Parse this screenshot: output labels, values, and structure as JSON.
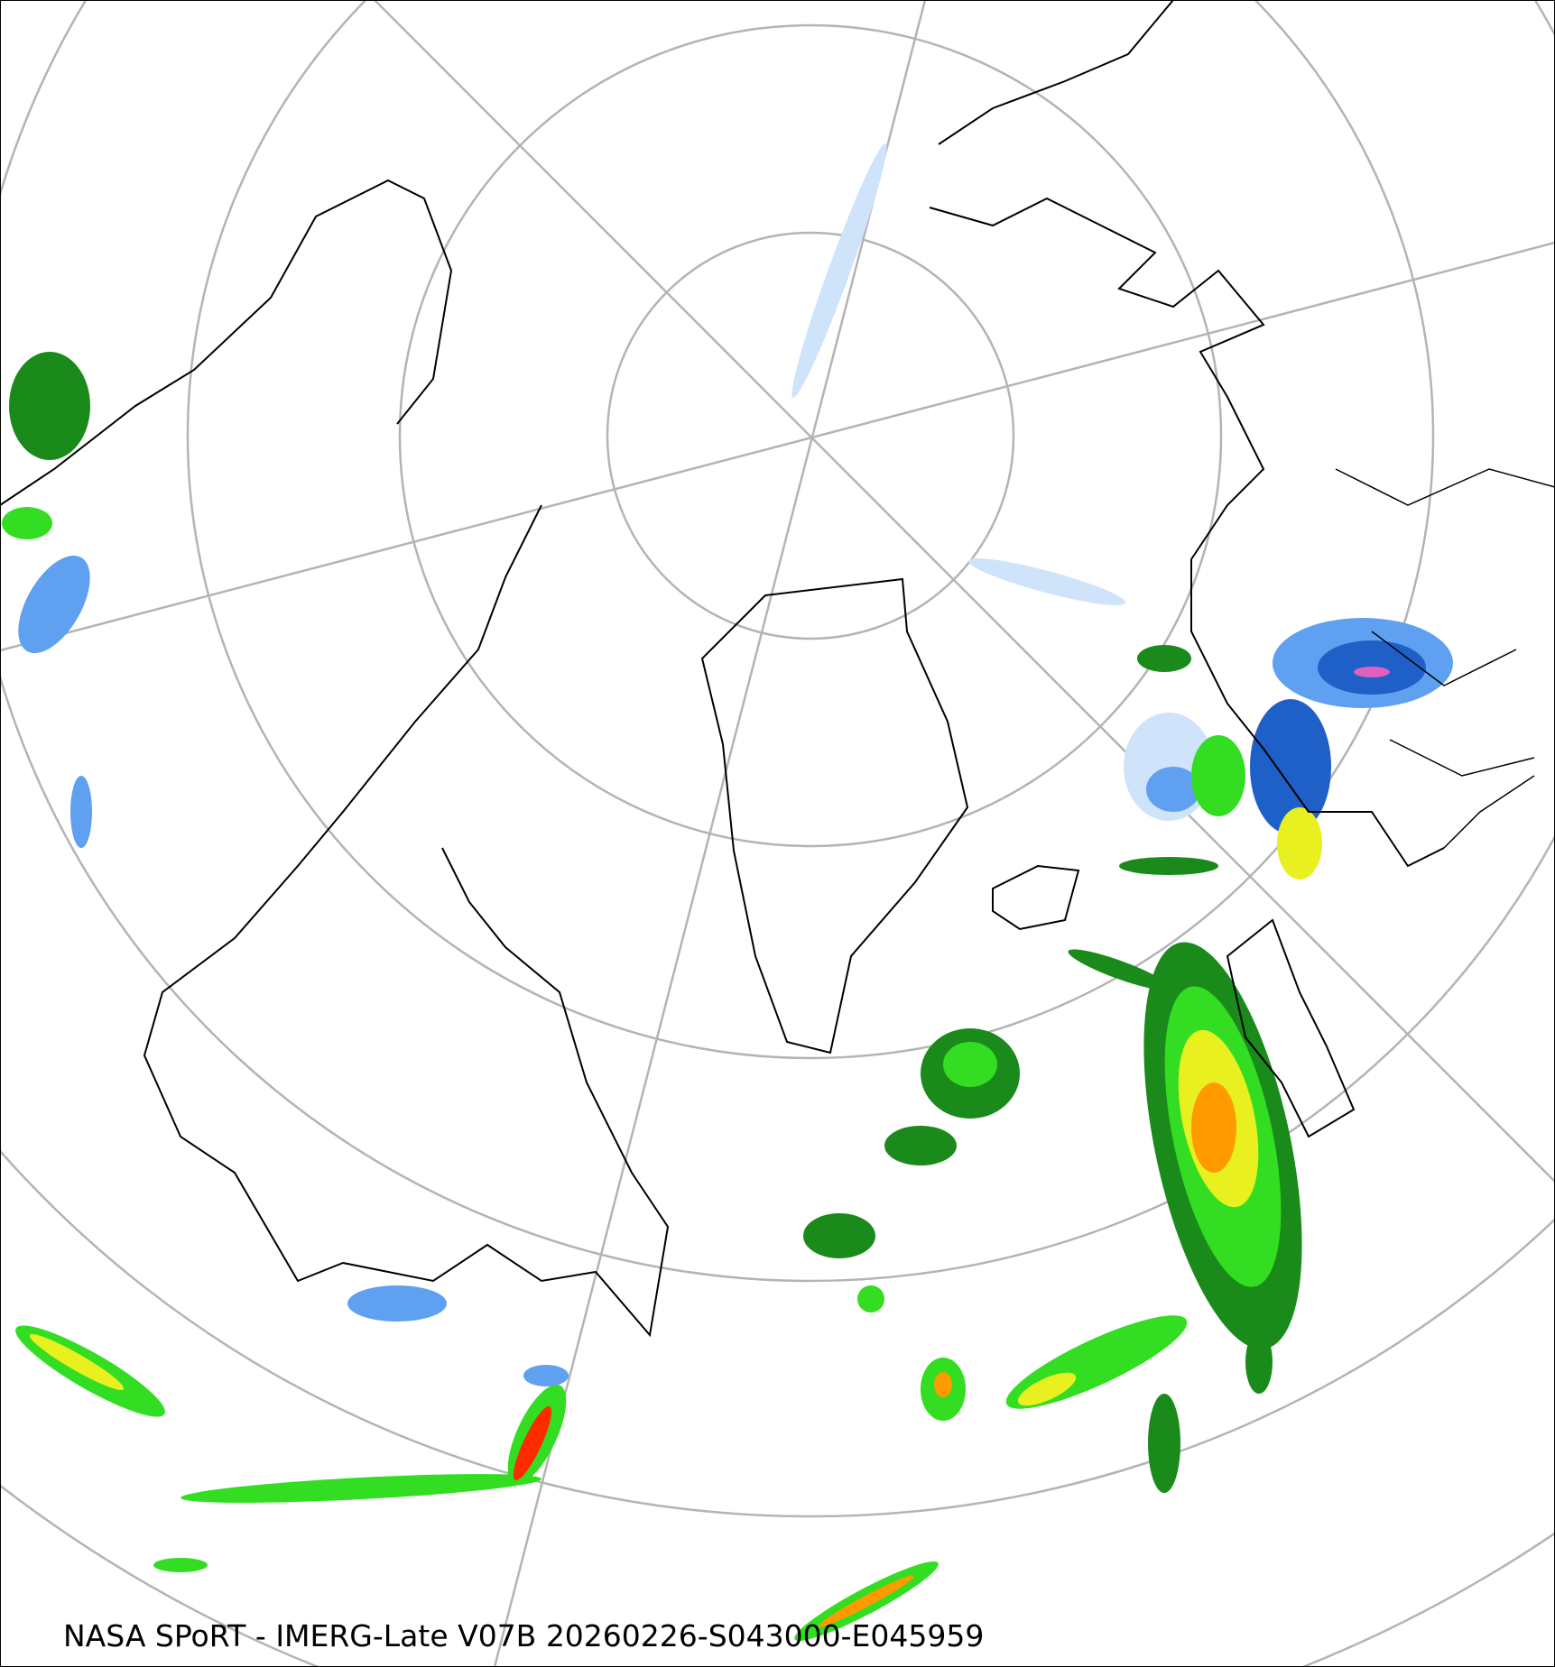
{
  "caption": "NASA SPoRT - IMERG-Late V07B 20260226-S043000-E045959",
  "projection": "north-polar-stereographic",
  "graticule_color": "#b4b4b4",
  "coastline_color": "#000000",
  "precip_colors": {
    "snow_light": "#cfe3fb",
    "snow_mid": "#5fa0f0",
    "snow_heavy": "#1f5fc8",
    "rain_light": "#1a8a1a",
    "rain_mid": "#33dd22",
    "rain_heavy": "#e8f020",
    "rain_very_heavy": "#ff9a00",
    "rain_extreme": "#ff2a00",
    "mixed": "#e060c0"
  }
}
